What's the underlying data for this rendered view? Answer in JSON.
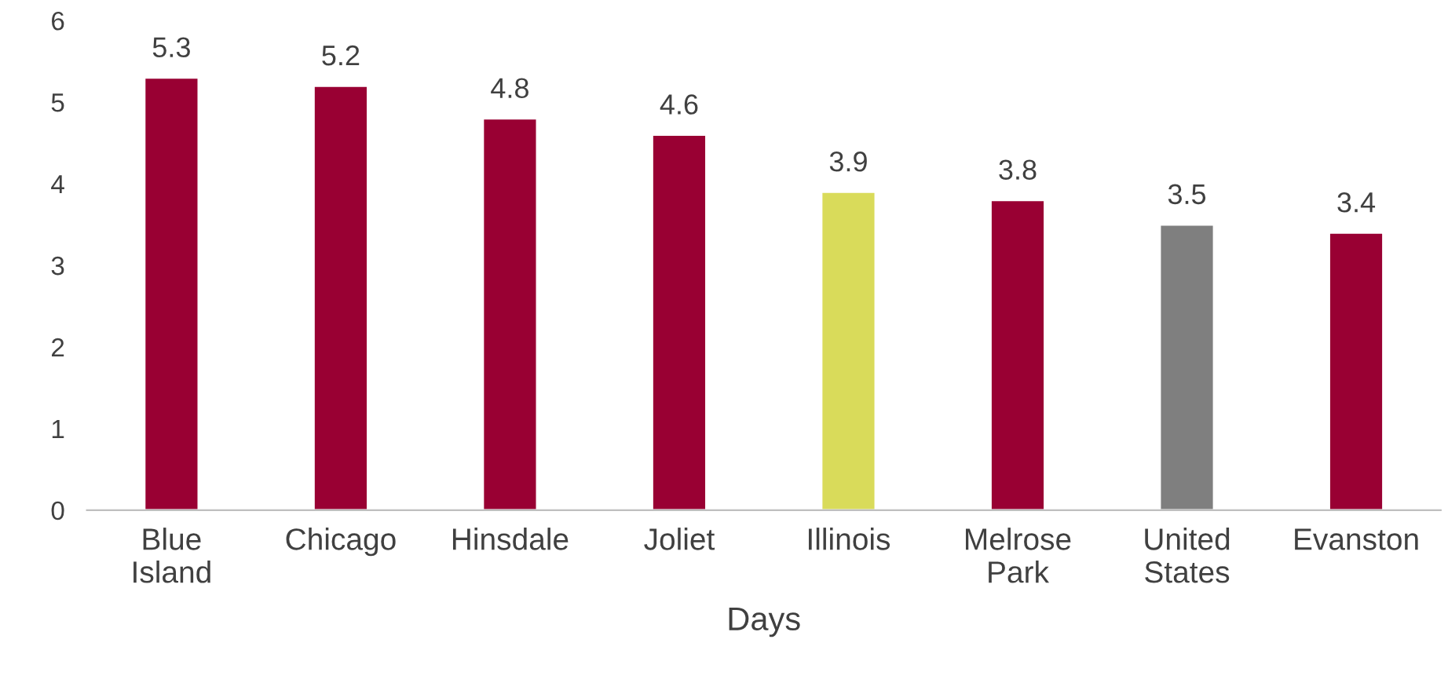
{
  "chart_data": {
    "type": "bar",
    "xlabel": "Days",
    "categories": [
      "Blue\nIsland",
      "Chicago",
      "Hinsdale",
      "Joliet",
      "Illinois",
      "Melrose\nPark",
      "United\nStates",
      "Evanston"
    ],
    "values": [
      5.3,
      5.2,
      4.8,
      4.6,
      3.9,
      3.8,
      3.5,
      3.4
    ],
    "colors": [
      "#990033",
      "#990033",
      "#990033",
      "#990033",
      "#d9db5a",
      "#990033",
      "#7f7f7f",
      "#990033"
    ],
    "ylim": [
      0,
      6
    ],
    "yticks": [
      0,
      1,
      2,
      3,
      4,
      5,
      6
    ],
    "grid": false,
    "data_labels": true
  }
}
